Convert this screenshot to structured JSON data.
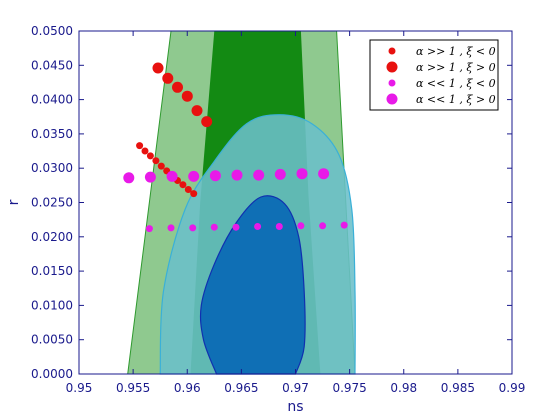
{
  "chart_data": {
    "type": "scatter",
    "xlabel": "ns",
    "ylabel": "r",
    "xlim": [
      0.95,
      0.99
    ],
    "ylim": [
      0.0,
      0.05
    ],
    "xticks": [
      "0.95",
      "0.955",
      "0.96",
      "0.965",
      "0.97",
      "0.975",
      "0.98",
      "0.985",
      "0.99"
    ],
    "yticks": [
      "0.0000",
      "0.0050",
      "0.0100",
      "0.0150",
      "0.0200",
      "0.0250",
      "0.0300",
      "0.0350",
      "0.0400",
      "0.0450",
      "0.0500"
    ],
    "legend_position": "top-right",
    "colors": {
      "outer_contour": "#8fc98f",
      "inner_contour": "#138a13",
      "blue_outer": "#6bbfc9",
      "blue_inner": "#0f6fb5",
      "red": "#e8110f",
      "magenta": "#e81ae8"
    },
    "contours": {
      "green_outer": [
        [
          0.9545,
          0
        ],
        [
          0.9585,
          0.05
        ],
        [
          0.9738,
          0.05
        ],
        [
          0.9755,
          0
        ]
      ],
      "green_inner": [
        [
          0.9603,
          0
        ],
        [
          0.9612,
          0.025
        ],
        [
          0.9625,
          0.05
        ],
        [
          0.9705,
          0.05
        ],
        [
          0.9712,
          0.026
        ],
        [
          0.9723,
          0
        ]
      ],
      "blue_outer": [
        [
          0.9575,
          0
        ],
        [
          0.9578,
          0.012
        ],
        [
          0.9598,
          0.024
        ],
        [
          0.9625,
          0.031
        ],
        [
          0.9655,
          0.0365
        ],
        [
          0.9685,
          0.0378
        ],
        [
          0.9715,
          0.0365
        ],
        [
          0.974,
          0.032
        ],
        [
          0.9752,
          0.024
        ],
        [
          0.9755,
          0.012
        ],
        [
          0.9755,
          0
        ]
      ],
      "blue_inner": [
        [
          0.9627,
          0
        ],
        [
          0.9615,
          0.005
        ],
        [
          0.9613,
          0.01
        ],
        [
          0.9625,
          0.016
        ],
        [
          0.9645,
          0.022
        ],
        [
          0.9668,
          0.0258
        ],
        [
          0.969,
          0.0248
        ],
        [
          0.9703,
          0.02
        ],
        [
          0.9708,
          0.012
        ],
        [
          0.9708,
          0.004
        ],
        [
          0.97,
          0
        ]
      ]
    },
    "legend": [
      {
        "label": "α >> 1 , ξ < 0",
        "color": "#e8110f",
        "size": "small"
      },
      {
        "label": "α >> 1 , ξ > 0",
        "color": "#e8110f",
        "size": "large"
      },
      {
        "label": "α << 1 , ξ < 0",
        "color": "#e81ae8",
        "size": "small"
      },
      {
        "label": "α << 1 , ξ > 0",
        "color": "#e81ae8",
        "size": "large"
      }
    ],
    "series": [
      {
        "name": "α >> 1 , ξ < 0",
        "color": "#e8110f",
        "size": "small",
        "x": [
          0.9556,
          0.9561,
          0.9566,
          0.9571,
          0.9576,
          0.9581,
          0.9586,
          0.9591,
          0.9596,
          0.9601,
          0.9606
        ],
        "y": [
          0.0333,
          0.0325,
          0.0318,
          0.0311,
          0.0303,
          0.0296,
          0.0289,
          0.0282,
          0.0276,
          0.0269,
          0.0263
        ]
      },
      {
        "name": "α >> 1 , ξ > 0",
        "color": "#e8110f",
        "size": "large",
        "x": [
          0.9573,
          0.9582,
          0.9591,
          0.96,
          0.9609,
          0.9618
        ],
        "y": [
          0.0446,
          0.0431,
          0.0418,
          0.0405,
          0.0384,
          0.0368
        ]
      },
      {
        "name": "α << 1 , ξ < 0",
        "color": "#e81ae8",
        "size": "small",
        "x": [
          0.9565,
          0.9585,
          0.9605,
          0.9625,
          0.9645,
          0.9665,
          0.9685,
          0.9705,
          0.9725,
          0.9745
        ],
        "y": [
          0.0212,
          0.0213,
          0.0213,
          0.0214,
          0.0214,
          0.0215,
          0.0215,
          0.0216,
          0.0216,
          0.0217
        ]
      },
      {
        "name": "α << 1 , ξ > 0",
        "color": "#e81ae8",
        "size": "large",
        "x": [
          0.9546,
          0.9566,
          0.9586,
          0.9606,
          0.9626,
          0.9646,
          0.9666,
          0.9686,
          0.9706,
          0.9726
        ],
        "y": [
          0.0286,
          0.0287,
          0.0288,
          0.0288,
          0.0289,
          0.029,
          0.029,
          0.0291,
          0.0292,
          0.0292
        ]
      }
    ]
  }
}
